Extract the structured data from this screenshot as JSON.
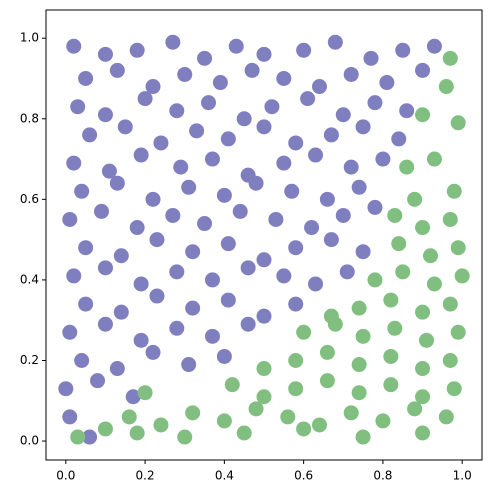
{
  "chart_data": {
    "type": "scatter",
    "xlim": [
      -0.05,
      1.05
    ],
    "ylim": [
      -0.047,
      1.07
    ],
    "xticks": [
      {
        "value": 0,
        "label": "0.0"
      },
      0.2,
      0.4,
      0.6,
      0.8,
      {
        "value": 1,
        "label": "1.0"
      }
    ],
    "yticks": [
      {
        "value": 0,
        "label": "0.0"
      },
      0.2,
      0.4,
      0.6,
      0.8,
      {
        "value": 1,
        "label": "1.0"
      }
    ],
    "series": [
      {
        "color": "#7f7fbf",
        "x": [
          0.02,
          0.1,
          0.18,
          0.27,
          0.35,
          0.43,
          0.5,
          0.6,
          0.68,
          0.77,
          0.85,
          0.93,
          0.05,
          0.13,
          0.22,
          0.3,
          0.39,
          0.47,
          0.55,
          0.64,
          0.72,
          0.81,
          0.9,
          0.03,
          0.1,
          0.2,
          0.28,
          0.36,
          0.45,
          0.52,
          0.61,
          0.7,
          0.78,
          0.86,
          0.06,
          0.15,
          0.24,
          0.33,
          0.41,
          0.5,
          0.58,
          0.67,
          0.75,
          0.84,
          0.02,
          0.11,
          0.19,
          0.29,
          0.37,
          0.46,
          0.55,
          0.63,
          0.72,
          0.8,
          0.04,
          0.13,
          0.22,
          0.31,
          0.4,
          0.48,
          0.57,
          0.66,
          0.74,
          0.01,
          0.09,
          0.18,
          0.27,
          0.35,
          0.44,
          0.53,
          0.62,
          0.7,
          0.78,
          0.05,
          0.14,
          0.23,
          0.32,
          0.41,
          0.5,
          0.58,
          0.67,
          0.75,
          0.02,
          0.1,
          0.19,
          0.28,
          0.37,
          0.46,
          0.55,
          0.63,
          0.71,
          0.05,
          0.14,
          0.23,
          0.32,
          0.41,
          0.5,
          0.58,
          0.01,
          0.1,
          0.19,
          0.28,
          0.37,
          0.46,
          0.04,
          0.13,
          0.22,
          0.31,
          0.4,
          0.0,
          0.08,
          0.17,
          0.01,
          0.06
        ],
        "values": [
          0.98,
          0.96,
          0.97,
          0.99,
          0.95,
          0.98,
          0.96,
          0.97,
          0.99,
          0.95,
          0.97,
          0.98,
          0.9,
          0.92,
          0.88,
          0.91,
          0.89,
          0.92,
          0.9,
          0.88,
          0.91,
          0.89,
          0.92,
          0.83,
          0.81,
          0.85,
          0.82,
          0.84,
          0.8,
          0.83,
          0.85,
          0.81,
          0.84,
          0.82,
          0.76,
          0.78,
          0.74,
          0.77,
          0.75,
          0.78,
          0.74,
          0.76,
          0.78,
          0.75,
          0.69,
          0.67,
          0.71,
          0.68,
          0.7,
          0.66,
          0.69,
          0.71,
          0.68,
          0.7,
          0.62,
          0.64,
          0.6,
          0.63,
          0.61,
          0.64,
          0.62,
          0.6,
          0.63,
          0.55,
          0.57,
          0.53,
          0.56,
          0.54,
          0.57,
          0.55,
          0.53,
          0.56,
          0.58,
          0.48,
          0.46,
          0.5,
          0.47,
          0.49,
          0.45,
          0.48,
          0.5,
          0.47,
          0.41,
          0.43,
          0.39,
          0.42,
          0.4,
          0.43,
          0.41,
          0.39,
          0.42,
          0.34,
          0.32,
          0.36,
          0.33,
          0.35,
          0.31,
          0.34,
          0.27,
          0.29,
          0.25,
          0.28,
          0.26,
          0.29,
          0.2,
          0.18,
          0.22,
          0.19,
          0.21,
          0.13,
          0.15,
          0.11,
          0.06,
          0.01
        ]
      },
      {
        "color": "#80bf80",
        "x": [
          0.97,
          0.96,
          0.99,
          0.9,
          0.93,
          0.86,
          0.98,
          0.88,
          0.97,
          0.9,
          0.83,
          0.99,
          0.92,
          0.84,
          1.0,
          0.93,
          0.85,
          0.78,
          0.97,
          0.9,
          0.82,
          0.74,
          0.67,
          0.99,
          0.91,
          0.83,
          0.75,
          0.68,
          0.6,
          0.97,
          0.9,
          0.82,
          0.74,
          0.66,
          0.58,
          0.5,
          0.98,
          0.9,
          0.82,
          0.74,
          0.66,
          0.58,
          0.5,
          0.42,
          0.2,
          0.96,
          0.88,
          0.8,
          0.72,
          0.64,
          0.56,
          0.48,
          0.4,
          0.32,
          0.24,
          0.16,
          0.9,
          0.75,
          0.6,
          0.45,
          0.3,
          0.18,
          0.1,
          0.03
        ],
        "values": [
          0.95,
          0.88,
          0.79,
          0.81,
          0.7,
          0.68,
          0.62,
          0.6,
          0.55,
          0.53,
          0.56,
          0.48,
          0.46,
          0.49,
          0.41,
          0.39,
          0.42,
          0.4,
          0.34,
          0.32,
          0.35,
          0.33,
          0.31,
          0.27,
          0.25,
          0.28,
          0.26,
          0.29,
          0.27,
          0.2,
          0.18,
          0.21,
          0.19,
          0.22,
          0.2,
          0.18,
          0.13,
          0.11,
          0.14,
          0.12,
          0.15,
          0.13,
          0.11,
          0.14,
          0.12,
          0.06,
          0.08,
          0.05,
          0.07,
          0.04,
          0.06,
          0.08,
          0.05,
          0.07,
          0.04,
          0.06,
          0.02,
          0.01,
          0.03,
          0.02,
          0.01,
          0.02,
          0.03,
          0.01
        ]
      }
    ]
  }
}
